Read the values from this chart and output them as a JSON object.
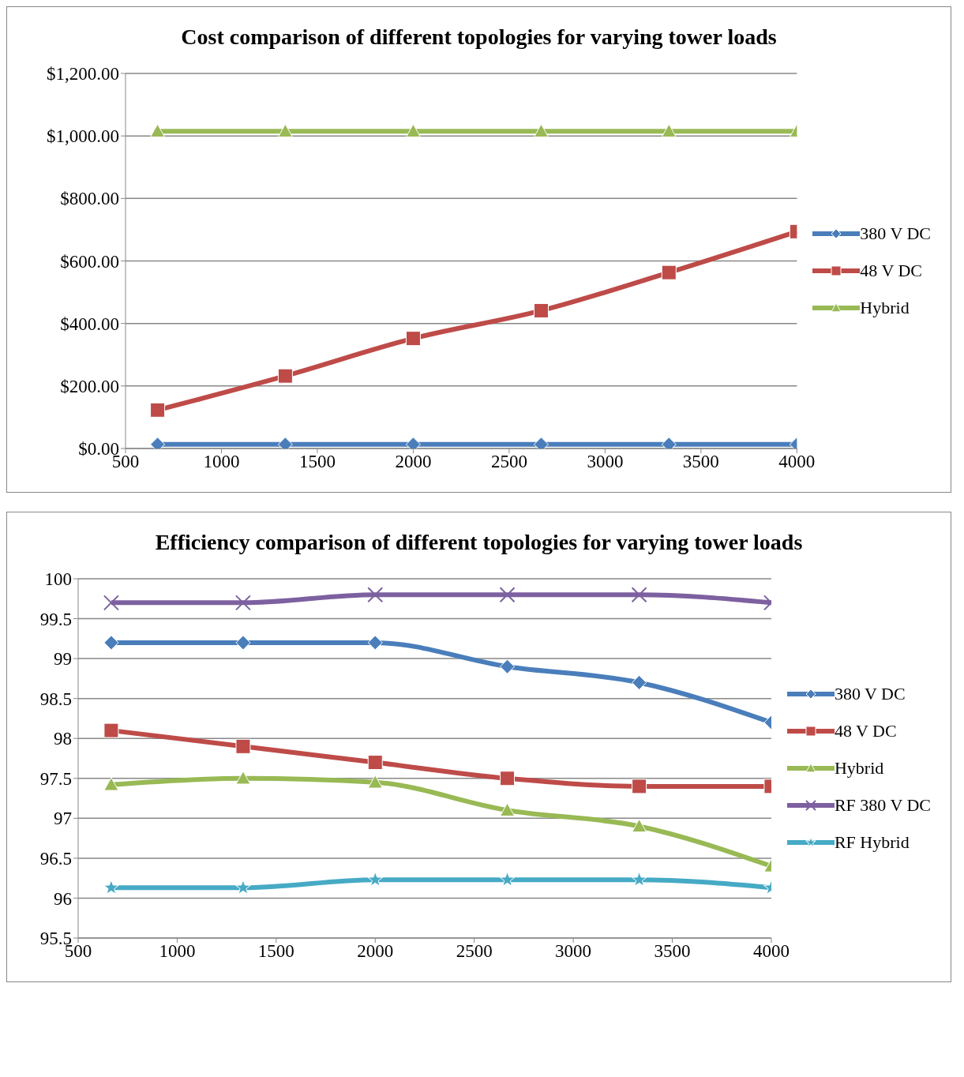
{
  "chart_data": [
    {
      "type": "line",
      "title": "Cost comparison of different topologies for varying tower loads",
      "x": [
        667,
        1333,
        2000,
        2667,
        3333,
        4000
      ],
      "xlim": [
        500,
        4000
      ],
      "xticks": [
        500,
        1000,
        1500,
        2000,
        2500,
        3000,
        3500,
        4000
      ],
      "ylim": [
        0,
        1200
      ],
      "yticks": [
        {
          "value": 0,
          "label": "$0.00"
        },
        {
          "value": 200,
          "label": "$200.00"
        },
        {
          "value": 400,
          "label": "$400.00"
        },
        {
          "value": 600,
          "label": "$600.00"
        },
        {
          "value": 800,
          "label": "$800.00"
        },
        {
          "value": 1000,
          "label": "$1,000.00"
        },
        {
          "value": 1200,
          "label": "$1,200.00"
        }
      ],
      "grid": "y",
      "legend": "right",
      "series": [
        {
          "name": "380 V DC",
          "color": "#4a7ebb",
          "marker": "diamond",
          "values": [
            13,
            13,
            13,
            13,
            13,
            13
          ]
        },
        {
          "name": "48 V DC",
          "color": "#be4b48",
          "marker": "square",
          "values": [
            123,
            232,
            352,
            441,
            563,
            694
          ]
        },
        {
          "name": "Hybrid",
          "color": "#98b954",
          "marker": "triangle",
          "values": [
            1015,
            1015,
            1015,
            1015,
            1015,
            1015
          ]
        }
      ]
    },
    {
      "type": "line",
      "title": "Efficiency comparison of different topologies for varying tower loads",
      "x": [
        667,
        1333,
        2000,
        2667,
        3333,
        4000
      ],
      "xlim": [
        500,
        4000
      ],
      "xticks": [
        500,
        1000,
        1500,
        2000,
        2500,
        3000,
        3500,
        4000
      ],
      "ylim": [
        95.5,
        100
      ],
      "yticks": [
        95.5,
        96,
        96.5,
        97,
        97.5,
        98,
        98.5,
        99,
        99.5,
        100
      ],
      "grid": "y",
      "legend": "right",
      "series": [
        {
          "name": "380 V DC",
          "color": "#4a7ebb",
          "marker": "diamond",
          "values": [
            99.2,
            99.2,
            99.2,
            98.9,
            98.7,
            98.2
          ]
        },
        {
          "name": "48 V DC",
          "color": "#be4b48",
          "marker": "square",
          "values": [
            98.1,
            97.9,
            97.7,
            97.5,
            97.4,
            97.4
          ]
        },
        {
          "name": "Hybrid",
          "color": "#98b954",
          "marker": "triangle",
          "values": [
            97.42,
            97.5,
            97.45,
            97.1,
            96.9,
            96.4
          ]
        },
        {
          "name": "RF 380 V DC",
          "color": "#7d60a0",
          "marker": "cross",
          "values": [
            99.7,
            99.7,
            99.8,
            99.8,
            99.8,
            99.7
          ]
        },
        {
          "name": "RF Hybrid",
          "color": "#46aac5",
          "marker": "star",
          "values": [
            96.13,
            96.13,
            96.23,
            96.23,
            96.23,
            96.13
          ]
        }
      ]
    }
  ]
}
